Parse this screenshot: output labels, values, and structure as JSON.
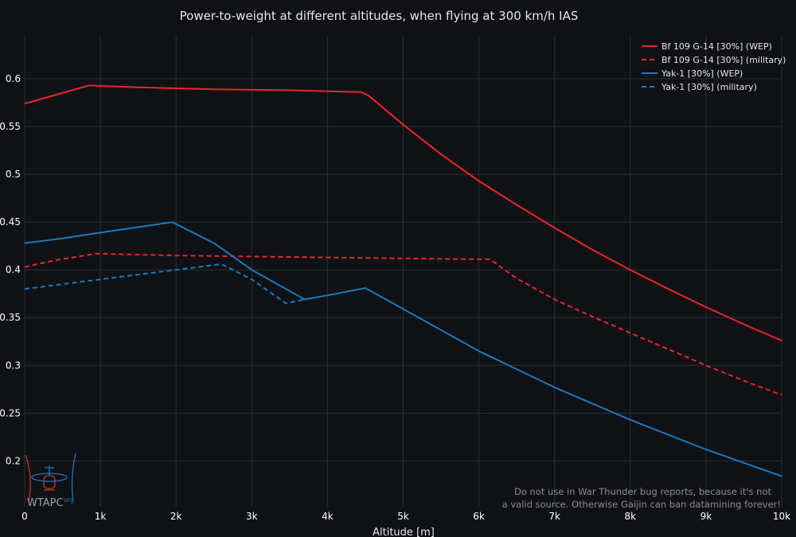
{
  "colors": {
    "background": "#0f1115",
    "plot_background": "#0f1115",
    "grid": "#2a3038",
    "text": "#e6e6e6",
    "tick_text": "#ffffff",
    "red": "#e8262b",
    "blue": "#1a7abf",
    "watermark": "#8c8c8c"
  },
  "chart_data": {
    "type": "line",
    "title": "Power-to-weight at different altitudes, when flying at 300 km/h IAS",
    "xlabel": "Altitude [m]",
    "ylabel": "",
    "xlim": [
      0,
      10000
    ],
    "ylim": [
      0.152,
      0.645
    ],
    "grid": true,
    "legend_position": "top-right",
    "x_ticks": [
      0,
      1000,
      2000,
      3000,
      4000,
      5000,
      6000,
      7000,
      8000,
      9000,
      10000
    ],
    "x_tick_labels": [
      "0",
      "1k",
      "2k",
      "3k",
      "4k",
      "5k",
      "6k",
      "7k",
      "8k",
      "9k",
      "10k"
    ],
    "y_ticks": [
      0.2,
      0.25,
      0.3,
      0.35,
      0.4,
      0.45,
      0.5,
      0.55,
      0.6
    ],
    "y_tick_labels": [
      "0.2",
      "0.25",
      "0.3",
      "0.35",
      "0.4",
      "0.45",
      "0.5",
      "0.55",
      "0.6"
    ],
    "series": [
      {
        "name": "Bf 109 G-14 [30%] (WEP)",
        "color": "#e8262b",
        "dash": "solid",
        "points": [
          [
            0,
            0.574
          ],
          [
            400,
            0.583
          ],
          [
            850,
            0.593
          ],
          [
            1500,
            0.591
          ],
          [
            2500,
            0.589
          ],
          [
            3500,
            0.588
          ],
          [
            4450,
            0.586
          ],
          [
            4550,
            0.582
          ],
          [
            5000,
            0.552
          ],
          [
            5500,
            0.521
          ],
          [
            6000,
            0.493
          ],
          [
            6500,
            0.468
          ],
          [
            7000,
            0.444
          ],
          [
            7500,
            0.421
          ],
          [
            8000,
            0.4
          ],
          [
            8500,
            0.38
          ],
          [
            9000,
            0.361
          ],
          [
            9500,
            0.343
          ],
          [
            10000,
            0.326
          ]
        ]
      },
      {
        "name": "Bf 109 G-14 [30%] (military)",
        "color": "#e8262b",
        "dash": "dashed",
        "points": [
          [
            0,
            0.403
          ],
          [
            400,
            0.41
          ],
          [
            950,
            0.417
          ],
          [
            2000,
            0.415
          ],
          [
            3000,
            0.414
          ],
          [
            4000,
            0.413
          ],
          [
            5000,
            0.412
          ],
          [
            6150,
            0.411
          ],
          [
            6500,
            0.391
          ],
          [
            7000,
            0.369
          ],
          [
            7500,
            0.351
          ],
          [
            8000,
            0.334
          ],
          [
            8500,
            0.317
          ],
          [
            9000,
            0.3
          ],
          [
            9500,
            0.284
          ],
          [
            10000,
            0.269
          ]
        ]
      },
      {
        "name": "Yak-1 [30%] (WEP)",
        "color": "#1a7abf",
        "dash": "solid",
        "points": [
          [
            0,
            0.428
          ],
          [
            500,
            0.433
          ],
          [
            1000,
            0.439
          ],
          [
            1950,
            0.45
          ],
          [
            2500,
            0.428
          ],
          [
            3000,
            0.4
          ],
          [
            3700,
            0.369
          ],
          [
            4050,
            0.374
          ],
          [
            4500,
            0.381
          ],
          [
            5000,
            0.359
          ],
          [
            6000,
            0.315
          ],
          [
            7000,
            0.277
          ],
          [
            8000,
            0.243
          ],
          [
            9000,
            0.212
          ],
          [
            10000,
            0.184
          ]
        ]
      },
      {
        "name": "Yak-1 [30%] (military)",
        "color": "#1a7abf",
        "dash": "dashed",
        "points": [
          [
            0,
            0.38
          ],
          [
            1000,
            0.39
          ],
          [
            2000,
            0.4
          ],
          [
            2600,
            0.406
          ],
          [
            3000,
            0.39
          ],
          [
            3450,
            0.365
          ],
          [
            3700,
            0.369
          ]
        ]
      }
    ]
  },
  "watermark": {
    "logo_text": "WTAPC",
    "logo_suffix": "org",
    "notice_line1": "Do not use in War Thunder bug reports, because it's not",
    "notice_line2": "a valid source. Otherwise Gaijin can ban datamining forever!"
  }
}
